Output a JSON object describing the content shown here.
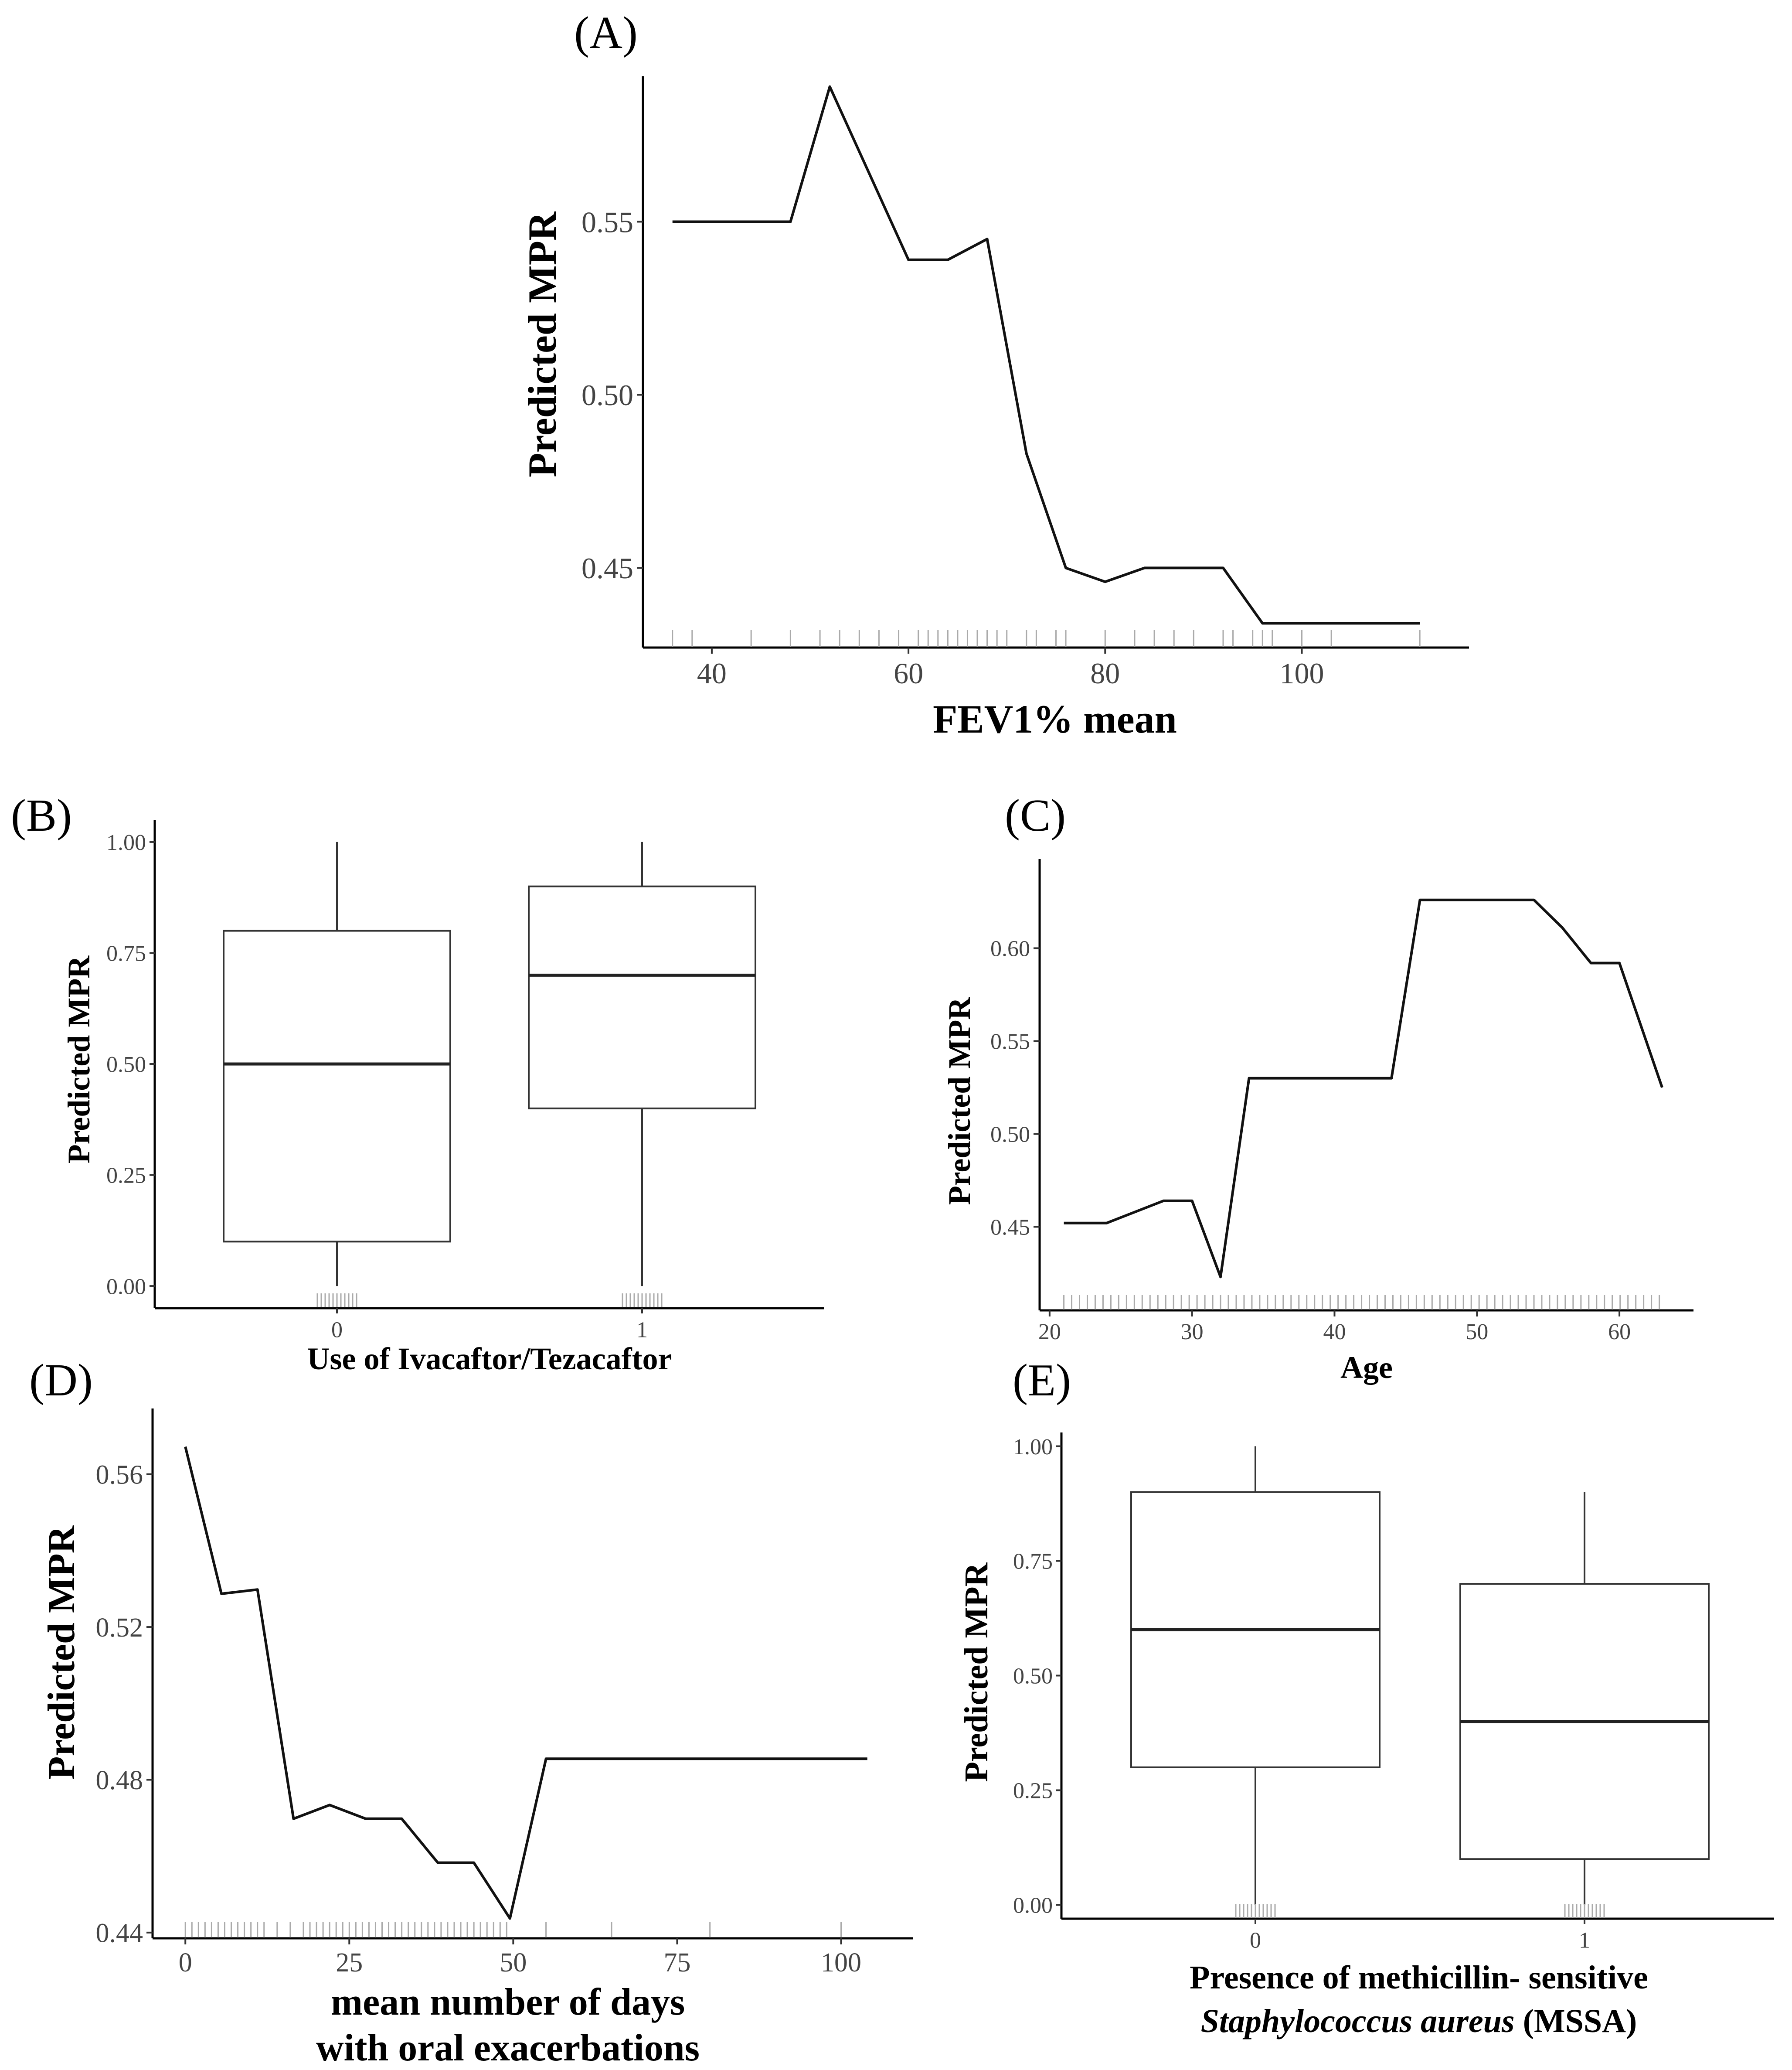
{
  "chart_data": [
    {
      "panel_label": "(A)",
      "type": "line",
      "xlabel": "FEV1% mean",
      "ylabel": "Predicted MPR",
      "xlim": [
        33,
        117
      ],
      "ylim": [
        0.427,
        0.592
      ],
      "x_ticks": [
        40,
        60,
        80,
        100
      ],
      "y_ticks": [
        0.45,
        0.5,
        0.55
      ],
      "y_tick_labels": [
        "0.45",
        "0.50",
        "0.55"
      ],
      "x": [
        36,
        48,
        52,
        56,
        60,
        64,
        68,
        72,
        76,
        80,
        84,
        88,
        92,
        96,
        112
      ],
      "y": [
        0.55,
        0.55,
        0.589,
        0.564,
        0.539,
        0.539,
        0.545,
        0.483,
        0.45,
        0.446,
        0.45,
        0.45,
        0.45,
        0.434,
        0.434
      ],
      "rug": [
        36,
        38,
        44,
        48,
        51,
        53,
        55,
        57,
        59,
        61,
        62,
        63,
        64,
        65,
        66,
        67,
        68,
        69,
        70,
        72,
        73,
        75,
        76,
        80,
        83,
        85,
        87,
        89,
        92,
        93,
        95,
        96,
        97,
        100,
        103,
        112
      ]
    },
    {
      "panel_label": "(B)",
      "type": "box",
      "xlabel": "Use of Ivacaftor/Tezacaftor",
      "ylabel": "Predicted MPR",
      "ylim": [
        -0.05,
        1.05
      ],
      "y_ticks": [
        0,
        0.25,
        0.5,
        0.75,
        1.0
      ],
      "y_tick_labels": [
        "0.00",
        "0.25",
        "0.50",
        "0.75",
        "1.00"
      ],
      "categories": [
        "0",
        "1"
      ],
      "boxes": [
        {
          "whisker_low": 0.0,
          "q1": 0.1,
          "median": 0.5,
          "q3": 0.8,
          "whisker_high": 1.0
        },
        {
          "whisker_low": 0.0,
          "q1": 0.4,
          "median": 0.7,
          "q3": 0.9,
          "whisker_high": 1.0
        }
      ]
    },
    {
      "panel_label": "(C)",
      "type": "line",
      "xlabel": "Age",
      "ylabel": "Predicted MPR",
      "xlim": [
        19.3,
        65.2
      ],
      "ylim": [
        0.405,
        0.648
      ],
      "x_ticks": [
        20,
        30,
        40,
        50,
        60
      ],
      "y_ticks": [
        0.45,
        0.5,
        0.55,
        0.6
      ],
      "y_tick_labels": [
        "0.45",
        "0.50",
        "0.55",
        "0.60"
      ],
      "x": [
        21,
        24,
        25,
        28,
        30,
        32,
        34,
        44,
        46,
        54,
        56,
        58,
        60,
        63
      ],
      "y": [
        0.452,
        0.452,
        0.455,
        0.464,
        0.464,
        0.423,
        0.53,
        0.53,
        0.626,
        0.626,
        0.611,
        0.592,
        0.592,
        0.525
      ]
    },
    {
      "panel_label": "(D)",
      "type": "line",
      "xlabel": [
        "mean number of days",
        "with oral exacerbations"
      ],
      "ylabel": "Predicted MPR",
      "xlim": [
        -5,
        111
      ],
      "ylim": [
        0.4385,
        0.5772
      ],
      "x_ticks": [
        0,
        25,
        50,
        75,
        100
      ],
      "y_ticks": [
        0.44,
        0.48,
        0.52,
        0.56
      ],
      "y_tick_labels": [
        "0.44",
        "0.48",
        "0.52",
        "0.56"
      ],
      "x": [
        0,
        5.5,
        11,
        16.5,
        22,
        27.5,
        33,
        38.5,
        44,
        49.5,
        55,
        104
      ],
      "y": [
        0.5672,
        0.5287,
        0.5298,
        0.4698,
        0.4734,
        0.4698,
        0.4698,
        0.4583,
        0.4583,
        0.4437,
        0.4855,
        0.4855
      ]
    },
    {
      "panel_label": "(E)",
      "type": "box",
      "xlabel": [
        "Presence of methicillin- sensitive",
        "Staphylococcus aureus",
        " (MSSA)"
      ],
      "ylabel": "Predicted MPR",
      "ylim": [
        -0.03,
        1.03
      ],
      "y_ticks": [
        0,
        0.25,
        0.5,
        0.75,
        1.0
      ],
      "y_tick_labels": [
        "0.00",
        "0.25",
        "0.50",
        "0.75",
        "1.00"
      ],
      "categories": [
        "0",
        "1"
      ],
      "boxes": [
        {
          "whisker_low": 0.0,
          "q1": 0.3,
          "median": 0.6,
          "q3": 0.9,
          "whisker_high": 1.0
        },
        {
          "whisker_low": 0.0,
          "q1": 0.1,
          "median": 0.4,
          "q3": 0.7,
          "whisker_high": 0.9
        }
      ]
    }
  ]
}
